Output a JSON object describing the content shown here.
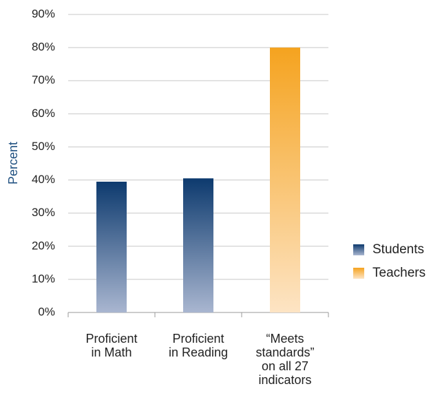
{
  "chart_data": {
    "type": "bar",
    "y_label": "Percent",
    "categories": [
      "Proficient\nin Math",
      "Proficient\nin Reading",
      "“Meets\nstandards”\non all 27\nindicators"
    ],
    "series": [
      {
        "name": "Students",
        "color": "#0d3a6e",
        "values": [
          39.5,
          40.5,
          null
        ]
      },
      {
        "name": "Teachers",
        "color": "#f5a31f",
        "values": [
          null,
          null,
          80
        ]
      }
    ],
    "ylim": [
      0,
      90
    ],
    "yticks": [
      {
        "value": 0,
        "label": "0%"
      },
      {
        "value": 10,
        "label": "10%"
      },
      {
        "value": 20,
        "label": "20%"
      },
      {
        "value": 30,
        "label": "30%"
      },
      {
        "value": 40,
        "label": "40%"
      },
      {
        "value": 50,
        "label": "50%"
      },
      {
        "value": 60,
        "label": "60%"
      },
      {
        "value": 70,
        "label": "70%"
      },
      {
        "value": 80,
        "label": "80%"
      },
      {
        "value": 90,
        "label": "90%"
      }
    ],
    "grid": true
  }
}
